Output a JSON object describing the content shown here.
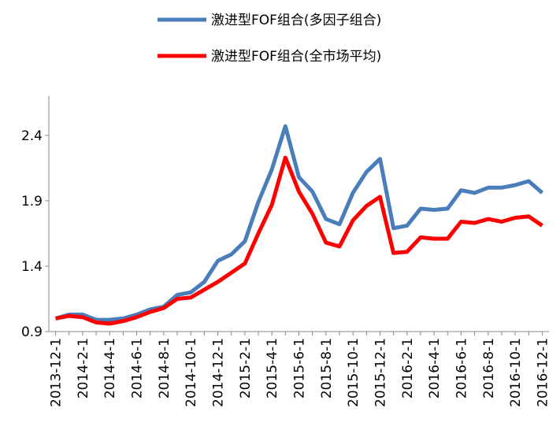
{
  "chart_data": {
    "type": "line",
    "categories": [
      "2013-12-1",
      null,
      "2014-2-1",
      null,
      "2014-4-1",
      null,
      "2014-6-1",
      null,
      "2014-8-1",
      null,
      "2014-10-1",
      null,
      "2014-12-1",
      null,
      "2015-2-1",
      null,
      "2015-4-1",
      null,
      "2015-6-1",
      null,
      "2015-8-1",
      null,
      "2015-10-1",
      null,
      "2015-12-1",
      null,
      "2016-2-1",
      null,
      "2016-4-1",
      null,
      "2016-6-1",
      null,
      "2016-8-1",
      null,
      "2016-10-1",
      null,
      "2016-12-1"
    ],
    "series": [
      {
        "name": "激进型FOF组合(多因子组合)",
        "color": "#4a7ebb",
        "values": [
          1.0,
          1.03,
          1.03,
          0.99,
          0.99,
          1.0,
          1.03,
          1.07,
          1.09,
          1.18,
          1.2,
          1.28,
          1.44,
          1.49,
          1.59,
          1.89,
          2.14,
          2.47,
          2.08,
          1.97,
          1.76,
          1.72,
          1.96,
          2.12,
          2.22,
          1.69,
          1.71,
          1.84,
          1.83,
          1.84,
          1.98,
          1.96,
          2.0,
          2.0,
          2.02,
          2.05,
          1.96
        ]
      },
      {
        "name": "激进型FOF组合(全市场平均)",
        "color": "#ff0000",
        "values": [
          1.0,
          1.02,
          1.01,
          0.97,
          0.96,
          0.98,
          1.01,
          1.05,
          1.08,
          1.15,
          1.16,
          1.22,
          1.28,
          1.35,
          1.42,
          1.65,
          1.87,
          2.23,
          1.97,
          1.8,
          1.58,
          1.55,
          1.75,
          1.86,
          1.93,
          1.5,
          1.51,
          1.62,
          1.61,
          1.61,
          1.74,
          1.73,
          1.76,
          1.74,
          1.77,
          1.78,
          1.71
        ]
      }
    ],
    "ylim": [
      0.9,
      2.7
    ],
    "yticks": [
      0.9,
      1.4,
      1.9,
      2.4
    ],
    "grid": false,
    "legend": "top"
  }
}
